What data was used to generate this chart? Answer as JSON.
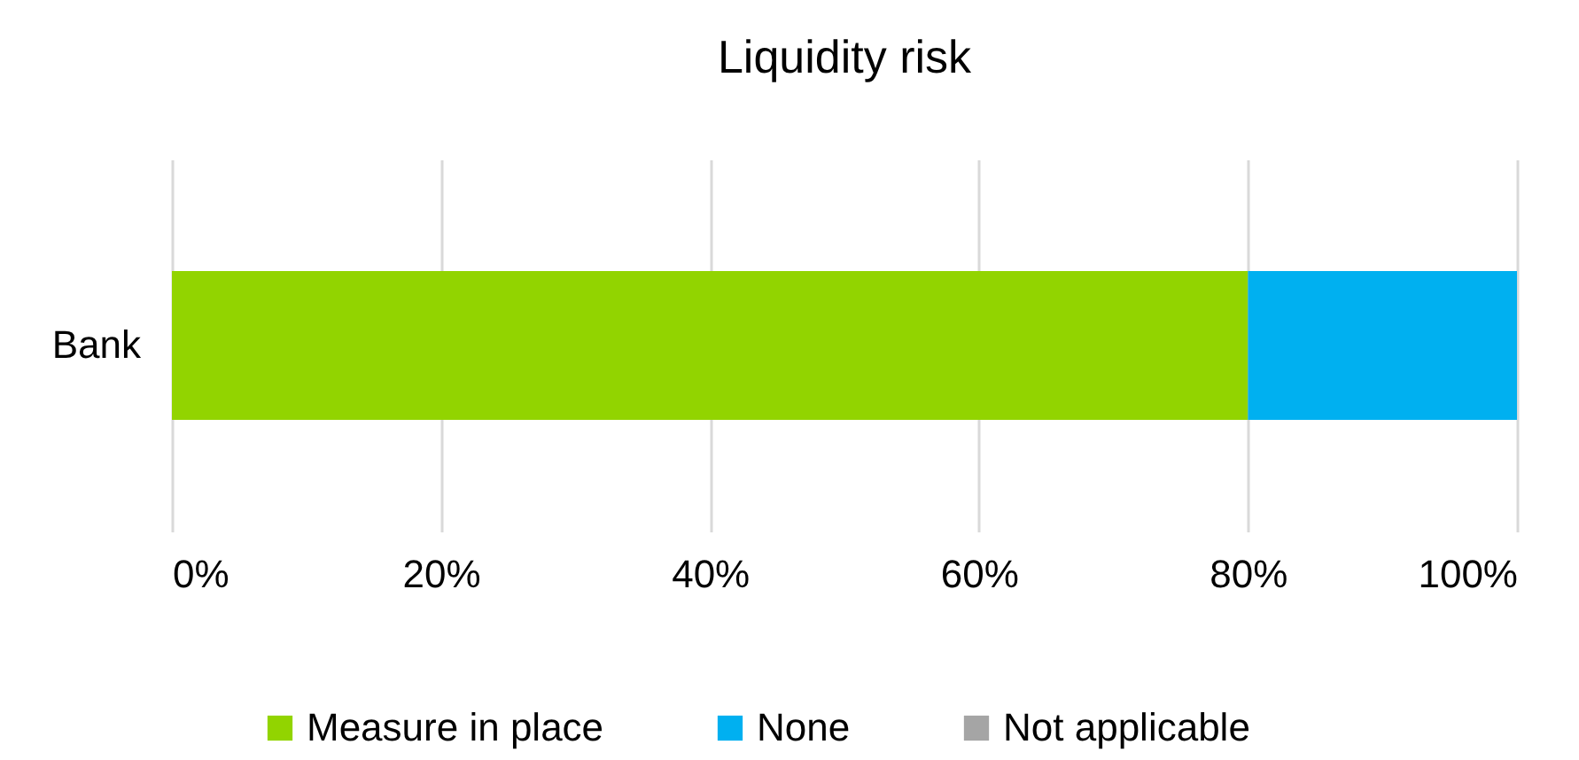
{
  "chart_data": {
    "type": "bar",
    "title": "Liquidity risk",
    "orientation": "horizontal",
    "stacked": true,
    "categories": [
      "Bank"
    ],
    "series": [
      {
        "name": "Measure in place",
        "color": "#92d400",
        "values": [
          80
        ]
      },
      {
        "name": "None",
        "color": "#00b0f0",
        "values": [
          20
        ]
      },
      {
        "name": "Not applicable",
        "color": "#a5a5a5",
        "values": [
          0
        ]
      }
    ],
    "xlim": [
      0,
      100
    ],
    "xticks": [
      {
        "value": 0,
        "label": "0%"
      },
      {
        "value": 20,
        "label": "20%"
      },
      {
        "value": 40,
        "label": "40%"
      },
      {
        "value": 60,
        "label": "60%"
      },
      {
        "value": 80,
        "label": "80%"
      },
      {
        "value": 100,
        "label": "100%"
      }
    ],
    "grid": "x",
    "legend": "bottom"
  }
}
